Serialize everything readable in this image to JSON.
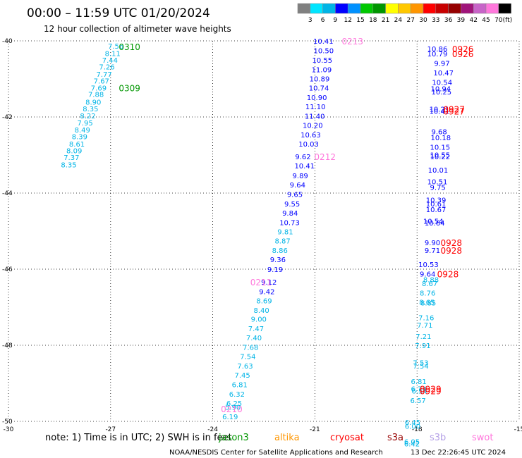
{
  "header": {
    "title": "00:00 – 11:59 UTC 01/20/2024",
    "subtitle": "12 hour collection of altimeter wave heights"
  },
  "color_scale": {
    "labels": [
      "3",
      "6",
      "9",
      "12",
      "15",
      "18",
      "21",
      "24",
      "27",
      "30",
      "33",
      "36",
      "39",
      "42",
      "45",
      "70"
    ],
    "unit": "(ft)",
    "colors": [
      "#808080",
      "#00e5ff",
      "#00b4e6",
      "#0000ff",
      "#0091ff",
      "#00c800",
      "#009600",
      "#ffff00",
      "#ffc800",
      "#ff9600",
      "#ff0000",
      "#c80000",
      "#960000",
      "#a0147a",
      "#c864c8",
      "#ff78dc",
      "#000000"
    ]
  },
  "notes": {
    "note": "note:  1)  Time is in UTC;  2)  SWH is in feet",
    "credit": "NOAA/NESDIS Center for Satellite Applications and Research",
    "timestamp": "13 Dec 22:26:45 UTC 2024"
  },
  "satellites": [
    {
      "name": "jason3",
      "color": "#009600"
    },
    {
      "name": "altika",
      "color": "#ff9600"
    },
    {
      "name": "cryosat",
      "color": "#ff0000"
    },
    {
      "name": "s3a",
      "color": "#960000"
    },
    {
      "name": "s3b",
      "color": "#b4a0e6"
    },
    {
      "name": "swot",
      "color": "#ff78dc"
    }
  ],
  "chart_data": {
    "type": "scatter",
    "xlim": [
      -30,
      -15
    ],
    "ylim": [
      -50,
      -40
    ],
    "x_ticks": [
      "-30",
      "-27",
      "-24",
      "-21",
      "-18",
      "-15"
    ],
    "y_ticks": [
      "-40",
      "-42",
      "-44",
      "-46",
      "-48",
      "-50"
    ],
    "grid": true,
    "labels": [
      {
        "lon": -27.08,
        "lat": -40.13,
        "text": "7.56",
        "color": "#00b4e6"
      },
      {
        "lon": -27.17,
        "lat": -40.32,
        "text": "8.11",
        "color": "#00b4e6"
      },
      {
        "lon": -27.25,
        "lat": -40.5,
        "text": "7.44",
        "color": "#00b4e6"
      },
      {
        "lon": -27.34,
        "lat": -40.68,
        "text": "7.26",
        "color": "#00b4e6"
      },
      {
        "lon": -27.42,
        "lat": -40.87,
        "text": "7.77",
        "color": "#00b4e6"
      },
      {
        "lon": -27.5,
        "lat": -41.05,
        "text": "7.67",
        "color": "#00b4e6"
      },
      {
        "lon": -27.58,
        "lat": -41.23,
        "text": "7.69",
        "color": "#00b4e6"
      },
      {
        "lon": -27.66,
        "lat": -41.4,
        "text": "7.88",
        "color": "#00b4e6"
      },
      {
        "lon": -27.74,
        "lat": -41.6,
        "text": "8.90",
        "color": "#00b4e6"
      },
      {
        "lon": -27.82,
        "lat": -41.78,
        "text": "8.35",
        "color": "#00b4e6"
      },
      {
        "lon": -27.9,
        "lat": -41.96,
        "text": "8.22",
        "color": "#00b4e6"
      },
      {
        "lon": -27.98,
        "lat": -42.15,
        "text": "7.95",
        "color": "#00b4e6"
      },
      {
        "lon": -28.06,
        "lat": -42.33,
        "text": "8.49",
        "color": "#00b4e6"
      },
      {
        "lon": -28.14,
        "lat": -42.51,
        "text": "8.39",
        "color": "#00b4e6"
      },
      {
        "lon": -28.22,
        "lat": -42.7,
        "text": "8.61",
        "color": "#00b4e6"
      },
      {
        "lon": -28.3,
        "lat": -42.88,
        "text": "8.09",
        "color": "#00b4e6"
      },
      {
        "lon": -28.38,
        "lat": -43.06,
        "text": "7.37",
        "color": "#00b4e6"
      },
      {
        "lon": -28.46,
        "lat": -43.25,
        "text": "8.35",
        "color": "#00b4e6"
      },
      {
        "lon": -21.05,
        "lat": -40.0,
        "text": "10.41",
        "color": "#0000ff"
      },
      {
        "lon": -21.04,
        "lat": -40.25,
        "text": "10.50",
        "color": "#0000ff"
      },
      {
        "lon": -21.08,
        "lat": -40.5,
        "text": "10.55",
        "color": "#0000ff"
      },
      {
        "lon": -21.1,
        "lat": -40.75,
        "text": "11.09",
        "color": "#0000ff"
      },
      {
        "lon": -21.16,
        "lat": -40.99,
        "text": "10.89",
        "color": "#0000ff"
      },
      {
        "lon": -21.18,
        "lat": -41.23,
        "text": "10.74",
        "color": "#0000ff"
      },
      {
        "lon": -21.24,
        "lat": -41.48,
        "text": "10.90",
        "color": "#0000ff"
      },
      {
        "lon": -21.28,
        "lat": -41.72,
        "text": "11.10",
        "color": "#0000ff"
      },
      {
        "lon": -21.3,
        "lat": -41.97,
        "text": "11.40",
        "color": "#0000ff"
      },
      {
        "lon": -21.36,
        "lat": -42.21,
        "text": "10.20",
        "color": "#0000ff"
      },
      {
        "lon": -21.42,
        "lat": -42.46,
        "text": "10.63",
        "color": "#0000ff"
      },
      {
        "lon": -21.48,
        "lat": -42.7,
        "text": "10.03",
        "color": "#0000ff"
      },
      {
        "lon": -21.58,
        "lat": -43.04,
        "text": "9.62",
        "color": "#0000ff"
      },
      {
        "lon": -21.6,
        "lat": -43.28,
        "text": "10.41",
        "color": "#0000ff"
      },
      {
        "lon": -21.66,
        "lat": -43.54,
        "text": "9.89",
        "color": "#0000ff"
      },
      {
        "lon": -21.74,
        "lat": -43.78,
        "text": "9.64",
        "color": "#0000ff"
      },
      {
        "lon": -21.82,
        "lat": -44.03,
        "text": "9.65",
        "color": "#0000ff"
      },
      {
        "lon": -21.9,
        "lat": -44.28,
        "text": "9.55",
        "color": "#0000ff"
      },
      {
        "lon": -21.96,
        "lat": -44.52,
        "text": "9.84",
        "color": "#0000ff"
      },
      {
        "lon": -22.04,
        "lat": -44.77,
        "text": "10.73",
        "color": "#0000ff"
      },
      {
        "lon": -22.1,
        "lat": -45.01,
        "text": "9.81",
        "color": "#00b4e6"
      },
      {
        "lon": -22.18,
        "lat": -45.25,
        "text": "8.87",
        "color": "#00b4e6"
      },
      {
        "lon": -22.26,
        "lat": -45.5,
        "text": "8.86",
        "color": "#00b4e6"
      },
      {
        "lon": -22.32,
        "lat": -45.74,
        "text": "9.36",
        "color": "#0000ff"
      },
      {
        "lon": -22.4,
        "lat": -46.0,
        "text": "9.19",
        "color": "#0000ff"
      },
      {
        "lon": -22.58,
        "lat": -46.33,
        "text": "9.12",
        "color": "#0000ff"
      },
      {
        "lon": -22.64,
        "lat": -46.58,
        "text": "9.42",
        "color": "#0000ff"
      },
      {
        "lon": -22.72,
        "lat": -46.82,
        "text": "8.69",
        "color": "#00b4e6"
      },
      {
        "lon": -22.8,
        "lat": -47.07,
        "text": "8.40",
        "color": "#00b4e6"
      },
      {
        "lon": -22.88,
        "lat": -47.31,
        "text": "9.00",
        "color": "#00b4e6"
      },
      {
        "lon": -22.96,
        "lat": -47.56,
        "text": "7.47",
        "color": "#00b4e6"
      },
      {
        "lon": -23.02,
        "lat": -47.8,
        "text": "7.40",
        "color": "#00b4e6"
      },
      {
        "lon": -23.12,
        "lat": -48.05,
        "text": "7.68",
        "color": "#00b4e6"
      },
      {
        "lon": -23.2,
        "lat": -48.29,
        "text": "7.54",
        "color": "#00b4e6"
      },
      {
        "lon": -23.28,
        "lat": -48.54,
        "text": "7.63",
        "color": "#00b4e6"
      },
      {
        "lon": -23.36,
        "lat": -48.78,
        "text": "7.45",
        "color": "#00b4e6"
      },
      {
        "lon": -23.44,
        "lat": -49.03,
        "text": "6.81",
        "color": "#00b4e6"
      },
      {
        "lon": -23.52,
        "lat": -49.28,
        "text": "6.32",
        "color": "#00b4e6"
      },
      {
        "lon": -23.6,
        "lat": -49.52,
        "text": "6.25",
        "color": "#00b4e6"
      },
      {
        "lon": -23.64,
        "lat": -49.62,
        "text": "5.90",
        "color": "#00b4e6"
      },
      {
        "lon": -23.72,
        "lat": -49.87,
        "text": "6.19",
        "color": "#00b4e6"
      },
      {
        "lon": -17.7,
        "lat": -40.2,
        "text": "10.86",
        "color": "#0000ff"
      },
      {
        "lon": -17.7,
        "lat": -40.33,
        "text": "10.79",
        "color": "#0000ff"
      },
      {
        "lon": -17.5,
        "lat": -40.58,
        "text": "9.97",
        "color": "#0000ff"
      },
      {
        "lon": -17.52,
        "lat": -40.83,
        "text": "10.47",
        "color": "#0000ff"
      },
      {
        "lon": -17.56,
        "lat": -41.08,
        "text": "10.54",
        "color": "#0000ff"
      },
      {
        "lon": -17.6,
        "lat": -41.25,
        "text": "10.94",
        "color": "#0000ff"
      },
      {
        "lon": -17.58,
        "lat": -41.33,
        "text": "10.25",
        "color": "#0000ff"
      },
      {
        "lon": -17.64,
        "lat": -41.79,
        "text": "10.21",
        "color": "#0000ff"
      },
      {
        "lon": -17.64,
        "lat": -41.84,
        "text": "10.41",
        "color": "#0000ff"
      },
      {
        "lon": -17.58,
        "lat": -42.38,
        "text": "9.68",
        "color": "#0000ff"
      },
      {
        "lon": -17.6,
        "lat": -42.54,
        "text": "10.18",
        "color": "#0000ff"
      },
      {
        "lon": -17.62,
        "lat": -42.79,
        "text": "10.15",
        "color": "#0000ff"
      },
      {
        "lon": -17.62,
        "lat": -42.99,
        "text": "10.55",
        "color": "#0000ff"
      },
      {
        "lon": -17.62,
        "lat": -43.04,
        "text": "10.22",
        "color": "#0000ff"
      },
      {
        "lon": -17.68,
        "lat": -43.39,
        "text": "10.01",
        "color": "#0000ff"
      },
      {
        "lon": -17.7,
        "lat": -43.69,
        "text": "10.51",
        "color": "#0000ff"
      },
      {
        "lon": -17.62,
        "lat": -43.84,
        "text": "9.75",
        "color": "#0000ff"
      },
      {
        "lon": -17.74,
        "lat": -44.18,
        "text": "10.39",
        "color": "#0000ff"
      },
      {
        "lon": -17.74,
        "lat": -44.28,
        "text": "10.61",
        "color": "#0000ff"
      },
      {
        "lon": -17.74,
        "lat": -44.43,
        "text": "10.67",
        "color": "#0000ff"
      },
      {
        "lon": -17.82,
        "lat": -44.73,
        "text": "10.54",
        "color": "#0000ff"
      },
      {
        "lon": -17.78,
        "lat": -44.78,
        "text": "10.64",
        "color": "#0000ff"
      },
      {
        "lon": -17.78,
        "lat": -45.3,
        "text": "9.90",
        "color": "#0000ff"
      },
      {
        "lon": -17.78,
        "lat": -45.5,
        "text": "9.71",
        "color": "#0000ff"
      },
      {
        "lon": -17.96,
        "lat": -45.87,
        "text": "10.53",
        "color": "#0000ff"
      },
      {
        "lon": -17.92,
        "lat": -46.12,
        "text": "9.64",
        "color": "#0000ff"
      },
      {
        "lon": -17.82,
        "lat": -46.27,
        "text": "8.88",
        "color": "#00b4e6"
      },
      {
        "lon": -17.86,
        "lat": -46.37,
        "text": "8.67",
        "color": "#00b4e6"
      },
      {
        "lon": -17.92,
        "lat": -46.62,
        "text": "8.76",
        "color": "#00b4e6"
      },
      {
        "lon": -17.9,
        "lat": -46.88,
        "text": "8.85",
        "color": "#00b4e6"
      },
      {
        "lon": -17.94,
        "lat": -46.86,
        "text": "8.65",
        "color": "#00b4e6"
      },
      {
        "lon": -17.96,
        "lat": -47.27,
        "text": "7.16",
        "color": "#00b4e6"
      },
      {
        "lon": -18.0,
        "lat": -47.46,
        "text": "7.71",
        "color": "#00b4e6"
      },
      {
        "lon": -18.04,
        "lat": -47.76,
        "text": "7.21",
        "color": "#00b4e6"
      },
      {
        "lon": -18.06,
        "lat": -48.0,
        "text": "7.91",
        "color": "#00b4e6"
      },
      {
        "lon": -18.12,
        "lat": -48.45,
        "text": "7.53",
        "color": "#00b4e6"
      },
      {
        "lon": -18.12,
        "lat": -48.54,
        "text": "7.54",
        "color": "#00b4e6"
      },
      {
        "lon": -18.18,
        "lat": -48.94,
        "text": "6.81",
        "color": "#00b4e6"
      },
      {
        "lon": -18.18,
        "lat": -49.14,
        "text": "6.74",
        "color": "#00b4e6"
      },
      {
        "lon": -18.16,
        "lat": -49.19,
        "text": "6.54",
        "color": "#00b4e6"
      },
      {
        "lon": -18.2,
        "lat": -49.44,
        "text": "6.57",
        "color": "#00b4e6"
      },
      {
        "lon": -18.36,
        "lat": -50.02,
        "text": "6.45",
        "color": "#00b4e6"
      },
      {
        "lon": -18.36,
        "lat": -50.12,
        "text": "6.00",
        "color": "#00b4e6"
      },
      {
        "lon": -18.38,
        "lat": -50.53,
        "text": "6.05",
        "color": "#00b4e6"
      },
      {
        "lon": -18.38,
        "lat": -50.58,
        "text": "6.42",
        "color": "#00b4e6"
      }
    ],
    "passes": [
      {
        "lon": -26.76,
        "lat": -40.15,
        "text": "0310",
        "color": "#009600"
      },
      {
        "lon": -26.76,
        "lat": -41.23,
        "text": "0309",
        "color": "#009600"
      },
      {
        "lon": -20.21,
        "lat": -40.0,
        "text": "0213",
        "color": "#ff78dc"
      },
      {
        "lon": -21.02,
        "lat": -43.04,
        "text": "0212",
        "color": "#ff78dc"
      },
      {
        "lon": -22.9,
        "lat": -46.33,
        "text": "0211",
        "color": "#ff78dc"
      },
      {
        "lon": -23.76,
        "lat": -49.67,
        "text": "0210",
        "color": "#ff78dc"
      },
      {
        "lon": -16.97,
        "lat": -40.2,
        "text": "0926",
        "color": "#ff0000"
      },
      {
        "lon": -16.97,
        "lat": -40.33,
        "text": "0926",
        "color": "#ff0000"
      },
      {
        "lon": -17.23,
        "lat": -41.79,
        "text": "0927",
        "color": "#ff0000"
      },
      {
        "lon": -17.23,
        "lat": -41.84,
        "text": "0927",
        "color": "#ff0000"
      },
      {
        "lon": -17.31,
        "lat": -45.3,
        "text": "0928",
        "color": "#ff0000"
      },
      {
        "lon": -17.31,
        "lat": -45.5,
        "text": "0928",
        "color": "#ff0000"
      },
      {
        "lon": -17.41,
        "lat": -46.12,
        "text": "0928",
        "color": "#ff0000"
      },
      {
        "lon": -17.92,
        "lat": -49.14,
        "text": "0929",
        "color": "#ff0000"
      },
      {
        "lon": -17.92,
        "lat": -49.19,
        "text": "0929",
        "color": "#ff0000"
      }
    ]
  }
}
